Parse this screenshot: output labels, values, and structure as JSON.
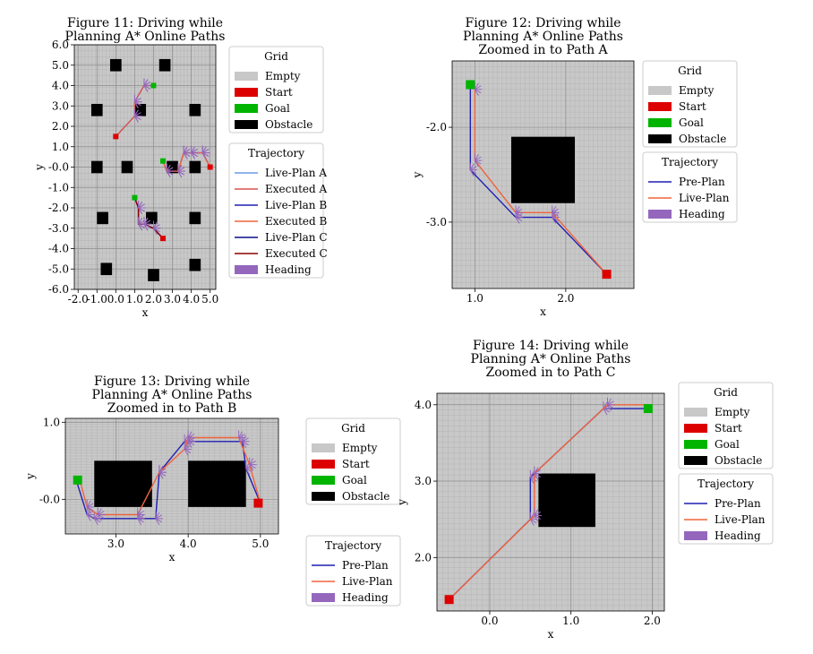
{
  "colors": {
    "grid_empty": "#c8c8c8",
    "start": "#dd0000",
    "goal": "#00b400",
    "obstacle": "#000000",
    "live_plan_a": "#6a9be6",
    "executed_a": "#d9534f",
    "live_plan_b": "#1f1fb4",
    "executed_b": "#f0643c",
    "live_plan_c": "#0d0d8c",
    "executed_c": "#8b0000",
    "pre_plan": "#1f1fb4",
    "live_plan": "#f0643c",
    "heading": "#9467bd",
    "background": "#ffffff"
  },
  "chart_data": [
    {
      "type": "line",
      "title": "Figure 11: Driving while\nPlanning A* Online Paths",
      "xlabel": "x",
      "ylabel": "y",
      "xlim": [
        -2.2,
        5.3
      ],
      "ylim": [
        -6.0,
        6.0
      ],
      "xticks": [
        -2.0,
        -1.0,
        0.0,
        1.0,
        2.0,
        3.0,
        4.0,
        5.0
      ],
      "yticks": [
        -6.0,
        -5.0,
        -4.0,
        -3.0,
        -2.0,
        -1.0,
        -0.0,
        1.0,
        2.0,
        3.0,
        4.0,
        5.0,
        6.0
      ],
      "obstacles": [
        [
          -0.3,
          4.7,
          0.6,
          0.6
        ],
        [
          2.3,
          4.7,
          0.6,
          0.6
        ],
        [
          -1.3,
          2.5,
          0.6,
          0.6
        ],
        [
          1.0,
          2.5,
          0.6,
          0.6
        ],
        [
          3.9,
          2.5,
          0.6,
          0.6
        ],
        [
          -1.3,
          -0.3,
          0.6,
          0.6
        ],
        [
          0.3,
          -0.3,
          0.6,
          0.6
        ],
        [
          2.7,
          -0.3,
          0.6,
          0.6
        ],
        [
          3.9,
          -0.3,
          0.6,
          0.6
        ],
        [
          -1.0,
          -2.8,
          0.6,
          0.6
        ],
        [
          1.6,
          -2.8,
          0.6,
          0.6
        ],
        [
          3.9,
          -2.8,
          0.6,
          0.6
        ],
        [
          -0.8,
          -5.3,
          0.6,
          0.6
        ],
        [
          1.7,
          -5.6,
          0.6,
          0.6
        ],
        [
          3.9,
          -5.1,
          0.6,
          0.6
        ]
      ],
      "series": [
        {
          "name": "Live-Plan A",
          "x": [
            0.0,
            1.0,
            1.0,
            1.5,
            2.0
          ],
          "y": [
            1.5,
            2.5,
            3.2,
            4.0,
            4.0
          ]
        },
        {
          "name": "Executed A",
          "x": [
            0.0,
            1.0,
            1.0,
            1.5,
            2.0
          ],
          "y": [
            1.5,
            2.5,
            3.2,
            4.0,
            4.0
          ]
        },
        {
          "name": "Live-Plan B",
          "x": [
            2.5,
            2.7,
            3.3,
            3.6,
            4.0,
            4.6,
            5.0
          ],
          "y": [
            0.3,
            -0.2,
            -0.2,
            0.7,
            0.7,
            0.7,
            0.0
          ]
        },
        {
          "name": "Executed B",
          "x": [
            2.5,
            2.7,
            3.3,
            3.6,
            4.0,
            4.6,
            5.0
          ],
          "y": [
            0.3,
            -0.2,
            -0.2,
            0.7,
            0.7,
            0.7,
            0.0
          ]
        },
        {
          "name": "Live-Plan C",
          "x": [
            1.0,
            1.2,
            1.2,
            1.5,
            2.0,
            2.5
          ],
          "y": [
            -1.5,
            -2.0,
            -2.8,
            -2.8,
            -3.0,
            -3.5
          ]
        },
        {
          "name": "Executed C",
          "x": [
            1.0,
            1.2,
            1.2,
            1.5,
            2.0,
            2.5
          ],
          "y": [
            -1.5,
            -2.0,
            -2.8,
            -2.8,
            -3.0,
            -3.5
          ]
        }
      ],
      "starts": [
        [
          0.0,
          1.5
        ],
        [
          5.0,
          0.0
        ],
        [
          2.5,
          -3.5
        ]
      ],
      "goals": [
        [
          2.0,
          4.0
        ],
        [
          2.5,
          0.3
        ],
        [
          1.0,
          -1.5
        ]
      ],
      "legends": [
        {
          "title": "Grid",
          "entries": [
            "Empty",
            "Start",
            "Goal",
            "Obstacle"
          ]
        },
        {
          "title": "Trajectory",
          "entries": [
            "Live-Plan A",
            "Executed A",
            "Live-Plan B",
            "Executed B",
            "Live-Plan C",
            "Executed C",
            "Heading"
          ]
        }
      ]
    },
    {
      "type": "line",
      "title": "Figure 12: Driving while\nPlanning A* Online Paths\nZoomed in to Path A",
      "xlabel": "x",
      "ylabel": "y",
      "xlim": [
        0.75,
        2.75
      ],
      "ylim": [
        -3.7,
        -1.3
      ],
      "xticks": [
        1.0,
        2.0
      ],
      "yticks": [
        -2.0,
        -3.0
      ],
      "obstacles": [
        [
          1.4,
          -2.8,
          0.7,
          0.7
        ]
      ],
      "series": [
        {
          "name": "Pre-Plan",
          "x": [
            0.95,
            0.95,
            1.45,
            1.85,
            2.45
          ],
          "y": [
            -1.55,
            -2.45,
            -2.95,
            -2.95,
            -3.55
          ]
        },
        {
          "name": "Live-Plan",
          "x": [
            0.95,
            1.0,
            1.0,
            1.45,
            1.85,
            2.45
          ],
          "y": [
            -1.55,
            -1.6,
            -2.35,
            -2.9,
            -2.9,
            -3.55
          ]
        }
      ],
      "starts": [
        [
          2.45,
          -3.55
        ]
      ],
      "goals": [
        [
          0.95,
          -1.55
        ]
      ],
      "legends": [
        {
          "title": "Grid",
          "entries": [
            "Empty",
            "Start",
            "Goal",
            "Obstacle"
          ]
        },
        {
          "title": "Trajectory",
          "entries": [
            "Pre-Plan",
            "Live-Plan",
            "Heading"
          ]
        }
      ]
    },
    {
      "type": "line",
      "title": "Figure 13: Driving while\nPlanning A* Online Paths\nZoomed in to Path B",
      "xlabel": "x",
      "ylabel": "y",
      "xlim": [
        2.3,
        5.25
      ],
      "ylim": [
        -0.45,
        1.05
      ],
      "xticks": [
        3.0,
        4.0,
        5.0
      ],
      "yticks": [
        1.0,
        -0.0
      ],
      "obstacles": [
        [
          2.7,
          -0.1,
          0.8,
          0.6
        ],
        [
          4.0,
          -0.1,
          0.8,
          0.6
        ]
      ],
      "series": [
        {
          "name": "Pre-Plan",
          "x": [
            5.0,
            4.8,
            4.75,
            4.0,
            3.95,
            3.6,
            3.55,
            3.3,
            2.7,
            2.6,
            2.45
          ],
          "y": [
            -0.05,
            0.4,
            0.75,
            0.75,
            0.75,
            0.35,
            -0.25,
            -0.25,
            -0.25,
            -0.2,
            0.25
          ]
        },
        {
          "name": "Live-Plan",
          "x": [
            5.0,
            4.85,
            4.7,
            4.0,
            3.95,
            3.6,
            3.3,
            2.75,
            2.6,
            2.5
          ],
          "y": [
            -0.05,
            0.45,
            0.8,
            0.8,
            0.65,
            0.35,
            -0.2,
            -0.2,
            -0.1,
            0.25
          ]
        }
      ],
      "starts": [
        [
          4.97,
          -0.05
        ]
      ],
      "goals": [
        [
          2.47,
          0.25
        ]
      ],
      "legends": [
        {
          "title": "Grid",
          "entries": [
            "Empty",
            "Start",
            "Goal",
            "Obstacle"
          ]
        },
        {
          "title": "Trajectory",
          "entries": [
            "Pre-Plan",
            "Live-Plan",
            "Heading"
          ]
        }
      ]
    },
    {
      "type": "line",
      "title": "Figure 14: Driving while\nPlanning A* Online Paths\nZoomed in to Path C",
      "xlabel": "x",
      "ylabel": "y",
      "xlim": [
        -0.65,
        2.15
      ],
      "ylim": [
        1.3,
        4.15
      ],
      "xticks": [
        0.0,
        1.0,
        2.0
      ],
      "yticks": [
        4.0,
        3.0,
        2.0
      ],
      "obstacles": [
        [
          0.6,
          2.4,
          0.7,
          0.7
        ]
      ],
      "series": [
        {
          "name": "Pre-Plan",
          "x": [
            -0.5,
            0.5,
            0.5,
            1.4,
            1.95
          ],
          "y": [
            1.45,
            2.5,
            3.05,
            3.95,
            3.95
          ]
        },
        {
          "name": "Live-Plan",
          "x": [
            -0.5,
            0.55,
            0.55,
            1.45,
            1.95
          ],
          "y": [
            1.45,
            2.55,
            3.1,
            4.0,
            4.0
          ]
        }
      ],
      "starts": [
        [
          -0.5,
          1.45
        ]
      ],
      "goals": [
        [
          1.95,
          3.95
        ]
      ],
      "legends": [
        {
          "title": "Grid",
          "entries": [
            "Empty",
            "Start",
            "Goal",
            "Obstacle"
          ]
        },
        {
          "title": "Trajectory",
          "entries": [
            "Pre-Plan",
            "Live-Plan",
            "Heading"
          ]
        }
      ]
    }
  ]
}
